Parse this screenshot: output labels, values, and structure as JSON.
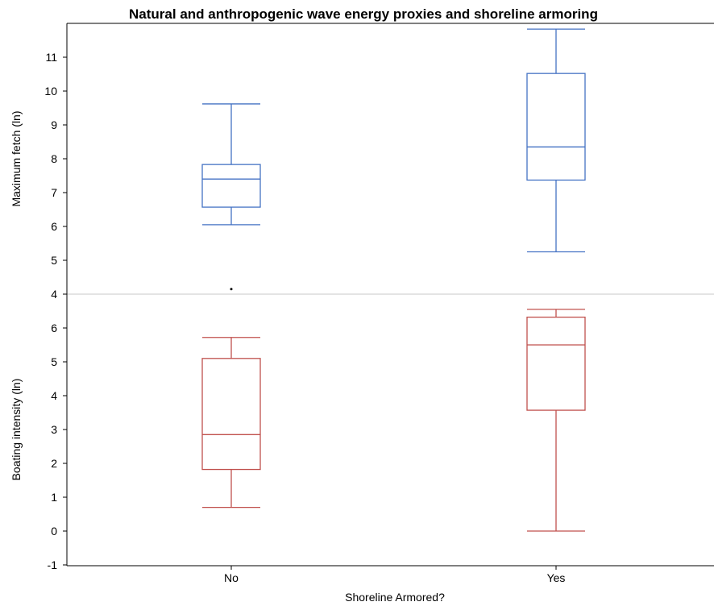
{
  "chart_data": {
    "type": "boxplot",
    "title": "Natural and anthropogenic wave energy proxies and shoreline armoring",
    "xlabel": "Shoreline Armored?",
    "categories": [
      "No",
      "Yes"
    ],
    "panels": [
      {
        "ylabel": "Maximum fetch (ln)",
        "color": "#4472C4",
        "ylim": [
          4,
          12
        ],
        "yticks": [
          4,
          5,
          6,
          7,
          8,
          9,
          10,
          11
        ],
        "boxes": [
          {
            "category": "No",
            "whisker_low": 6.05,
            "q1": 6.57,
            "median": 7.4,
            "q3": 7.83,
            "whisker_high": 9.62,
            "outliers": [
              4.15
            ]
          },
          {
            "category": "Yes",
            "whisker_low": 5.25,
            "q1": 7.37,
            "median": 8.35,
            "q3": 10.52,
            "whisker_high": 11.83,
            "outliers": []
          }
        ]
      },
      {
        "ylabel": "Boating intensity (ln)",
        "color": "#C0504D",
        "ylim": [
          -1,
          7
        ],
        "yticks": [
          -1,
          0,
          1,
          2,
          3,
          4,
          5,
          6
        ],
        "boxes": [
          {
            "category": "No",
            "whisker_low": 0.7,
            "q1": 1.82,
            "median": 2.85,
            "q3": 5.1,
            "whisker_high": 5.72,
            "outliers": []
          },
          {
            "category": "Yes",
            "whisker_low": 0.0,
            "q1": 3.57,
            "median": 5.5,
            "q3": 6.32,
            "whisker_high": 6.55,
            "outliers": []
          }
        ]
      }
    ]
  }
}
